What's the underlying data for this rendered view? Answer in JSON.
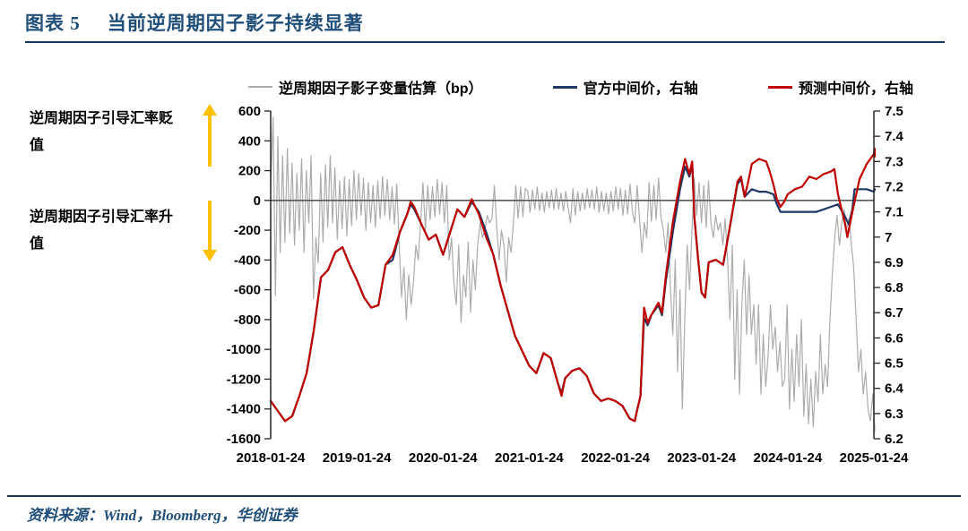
{
  "header": {
    "chart_label": "图表 5",
    "title": "当前逆周期因子影子持续显著"
  },
  "colors": {
    "title": "#1F4E79",
    "rule": "#17375E",
    "source": "#1F4E79",
    "axis": "#262626",
    "zero_line": "#595959",
    "arrow": "#FFC000",
    "shadow": "#ACACAC",
    "official": "#1F3864",
    "forecast": "#C00000"
  },
  "legend": [
    {
      "label": "逆周期因子影子变量估算（bp）",
      "color": "#ACACAC"
    },
    {
      "label": "官方中间价，右轴",
      "color": "#1F3864"
    },
    {
      "label": "预测中间价，右轴",
      "color": "#C00000"
    }
  ],
  "annotations": {
    "depreciation": {
      "line1": "逆周期因子引导汇率贬",
      "line2": "值",
      "arrow": "up"
    },
    "appreciation": {
      "line1": "逆周期因子引导汇率升",
      "line2": "值",
      "arrow": "down"
    }
  },
  "source": {
    "text": "资料来源：Wind，Bloomberg，华创证券"
  },
  "chart_data": {
    "type": "line",
    "title": "当前逆周期因子影子持续显著",
    "grid": false,
    "legend_position": "top",
    "x_axis": {
      "labels": [
        "2018-01-24",
        "2019-01-24",
        "2020-01-24",
        "2021-01-24",
        "2022-01-24",
        "2023-01-24",
        "2024-01-24",
        "2025-01-24"
      ],
      "positions_months": [
        0,
        12,
        24,
        36,
        48,
        60,
        72,
        84
      ],
      "months_total": 84
    },
    "left_axis": {
      "range": [
        -1600,
        600
      ],
      "ticks": [
        600,
        400,
        200,
        0,
        -200,
        -400,
        -600,
        -800,
        -1000,
        -1200,
        -1400,
        -1600
      ],
      "tick_labels": [
        "600",
        "400",
        "200",
        "0",
        "-200",
        "-400",
        "-600",
        "-800",
        "-1000",
        "-1200",
        "-1400",
        "-1600"
      ],
      "series_unit": "bp"
    },
    "right_axis": {
      "range": [
        6.2,
        7.5
      ],
      "ticks": [
        7.5,
        7.4,
        7.3,
        7.2,
        7.1,
        7.0,
        6.9,
        6.8,
        6.7,
        6.6,
        6.5,
        6.4,
        6.3,
        6.2
      ],
      "tick_labels": [
        "7.5",
        "7.4",
        "7.3",
        "7.2",
        "7.1",
        "7",
        "6.9",
        "6.8",
        "6.7",
        "6.6",
        "6.5",
        "6.4",
        "6.3",
        "6.2"
      ]
    },
    "zero_line": {
      "axis": "left",
      "value": 0
    },
    "series": [
      {
        "key": "shadow-bp",
        "name": "逆周期因子影子变量估算（bp）",
        "axis": "left",
        "color": "#ACACAC",
        "width": 1.2,
        "x_unit": "months_since_2018-01-24",
        "x_start": 0,
        "x_step": 0.3314,
        "values": [
          80,
          560,
          -640,
          430,
          -350,
          300,
          -280,
          350,
          -220,
          250,
          -300,
          180,
          -200,
          280,
          -350,
          200,
          -150,
          300,
          -660,
          -250,
          -420,
          180,
          -280,
          240,
          -180,
          300,
          -150,
          220,
          -260,
          130,
          -190,
          160,
          -240,
          140,
          -170,
          200,
          -130,
          180,
          -100,
          150,
          -200,
          120,
          -150,
          100,
          -180,
          130,
          -120,
          160,
          -100,
          140,
          -130,
          90,
          -160,
          110,
          -300,
          -650,
          -450,
          -800,
          -500,
          -700,
          -550,
          -300,
          -400,
          -150,
          120,
          -200,
          100,
          -130,
          90,
          -110,
          140,
          -90,
          120,
          -150,
          100,
          -400,
          -250,
          -550,
          -700,
          -300,
          -820,
          -500,
          -650,
          -280,
          -750,
          -400,
          -600,
          -300,
          -150,
          -250,
          -200,
          -100,
          -150,
          -120,
          100,
          -180,
          -400,
          -200,
          -300,
          -550,
          -250,
          -350,
          -150,
          100,
          -120,
          90,
          -110,
          80,
          60,
          -80,
          70,
          -60,
          90,
          -70,
          50,
          -80,
          60,
          -50,
          70,
          -60,
          80,
          -60,
          50,
          -70,
          60,
          -50,
          -150,
          80,
          -100,
          60,
          -70,
          50,
          -60,
          80,
          -50,
          70,
          -60,
          90,
          -80,
          60,
          -70,
          50,
          -90,
          60,
          -70,
          90,
          -60,
          80,
          -100,
          70,
          -90,
          110,
          -80,
          -150,
          100,
          -120,
          -350,
          -150,
          -250,
          120,
          -140,
          100,
          -130,
          150,
          -110,
          -200,
          -350,
          -150,
          -600,
          -900,
          -400,
          -1150,
          -600,
          -1400,
          -800,
          -300,
          -600,
          -200,
          150,
          -100,
          120,
          -150,
          100,
          -180,
          130,
          -150,
          -250,
          -100,
          -200,
          -150,
          -300,
          -120,
          -400,
          -800,
          -300,
          -1200,
          -600,
          -1300,
          -700,
          -400,
          -900,
          -500,
          -900,
          -700,
          -1100,
          -700,
          -1300,
          -900,
          -1250,
          -1050,
          -700,
          -1000,
          -850,
          -1150,
          -950,
          -1250,
          -1200,
          -700,
          -1400,
          -1000,
          -1350,
          -900,
          -1250,
          -800,
          -1450,
          -1100,
          -1500,
          -1200,
          -1520,
          -1150,
          -1350,
          -900,
          -1300,
          -1100,
          -1250,
          -800,
          -500,
          -250,
          -100,
          -300,
          -150,
          -60,
          -200,
          -120,
          -300,
          -450,
          -800,
          -1150,
          -1000,
          -1300,
          -1150,
          -1400,
          -1480,
          -1300,
          -1550,
          -1500
        ]
      },
      {
        "key": "official-parity",
        "name": "官方中间价，右轴",
        "axis": "right",
        "color": "#1F3864",
        "width": 2.2,
        "x_unit": "months_since_2018-01-24",
        "points": [
          [
            0,
            6.35
          ],
          [
            1,
            6.31
          ],
          [
            2,
            6.27
          ],
          [
            3,
            6.29
          ],
          [
            4,
            6.37
          ],
          [
            5,
            6.46
          ],
          [
            6,
            6.63
          ],
          [
            7,
            6.84
          ],
          [
            8,
            6.87
          ],
          [
            9,
            6.94
          ],
          [
            10,
            6.96
          ],
          [
            11,
            6.89
          ],
          [
            12,
            6.83
          ],
          [
            13,
            6.76
          ],
          [
            14,
            6.72
          ],
          [
            15,
            6.73
          ],
          [
            16,
            6.89
          ],
          [
            17,
            6.91
          ],
          [
            18,
            7.02
          ],
          [
            19,
            7.09
          ],
          [
            19.5,
            7.13
          ],
          [
            20,
            7.11
          ],
          [
            21,
            7.05
          ],
          [
            22,
            6.99
          ],
          [
            23,
            7.01
          ],
          [
            24,
            6.93
          ],
          [
            25,
            7.02
          ],
          [
            26,
            7.11
          ],
          [
            27,
            7.08
          ],
          [
            28,
            7.14
          ],
          [
            29,
            7.1
          ],
          [
            30,
            7.02
          ],
          [
            31,
            6.93
          ],
          [
            32,
            6.81
          ],
          [
            33,
            6.71
          ],
          [
            34,
            6.61
          ],
          [
            35,
            6.55
          ],
          [
            36,
            6.49
          ],
          [
            37,
            6.46
          ],
          [
            38,
            6.54
          ],
          [
            39,
            6.52
          ],
          [
            40,
            6.42
          ],
          [
            40.5,
            6.38
          ],
          [
            41,
            6.44
          ],
          [
            42,
            6.47
          ],
          [
            43,
            6.48
          ],
          [
            44,
            6.45
          ],
          [
            45,
            6.38
          ],
          [
            46,
            6.35
          ],
          [
            47,
            6.36
          ],
          [
            48,
            6.35
          ],
          [
            49,
            6.33
          ],
          [
            50,
            6.28
          ],
          [
            50.7,
            6.27
          ],
          [
            51,
            6.31
          ],
          [
            51.5,
            6.37
          ],
          [
            52,
            6.68
          ],
          [
            52.5,
            6.65
          ],
          [
            53,
            6.69
          ],
          [
            54,
            6.73
          ],
          [
            54.5,
            6.69
          ],
          [
            55,
            6.82
          ],
          [
            56,
            7.02
          ],
          [
            57,
            7.19
          ],
          [
            57.7,
            7.28
          ],
          [
            58.3,
            7.24
          ],
          [
            58.7,
            7.29
          ],
          [
            59,
            7.08
          ],
          [
            59.5,
            6.92
          ],
          [
            60,
            6.78
          ],
          [
            60.5,
            6.76
          ],
          [
            61,
            6.9
          ],
          [
            62,
            6.91
          ],
          [
            63,
            6.89
          ],
          [
            64,
            7.05
          ],
          [
            65,
            7.21
          ],
          [
            65.5,
            7.23
          ],
          [
            66,
            7.16
          ],
          [
            67,
            7.19
          ],
          [
            68,
            7.18
          ],
          [
            69,
            7.18
          ],
          [
            70,
            7.17
          ],
          [
            70.5,
            7.13
          ],
          [
            71,
            7.1
          ],
          [
            72,
            7.1
          ],
          [
            73,
            7.1
          ],
          [
            74,
            7.1
          ],
          [
            75,
            7.1
          ],
          [
            76,
            7.1
          ],
          [
            77,
            7.11
          ],
          [
            78,
            7.12
          ],
          [
            79,
            7.13
          ],
          [
            80,
            7.08
          ],
          [
            80.5,
            7.05
          ],
          [
            81,
            7.11
          ],
          [
            81.3,
            7.19
          ],
          [
            82,
            7.19
          ],
          [
            83,
            7.19
          ],
          [
            84,
            7.18
          ],
          [
            84.6,
            7.19
          ]
        ]
      },
      {
        "key": "forecast-parity",
        "name": "预测中间价，右轴",
        "axis": "right",
        "color": "#C00000",
        "width": 2.2,
        "x_unit": "months_since_2018-01-24",
        "points": [
          [
            0,
            6.35
          ],
          [
            1,
            6.31
          ],
          [
            2,
            6.27
          ],
          [
            3,
            6.29
          ],
          [
            4,
            6.37
          ],
          [
            5,
            6.46
          ],
          [
            6,
            6.63
          ],
          [
            7,
            6.84
          ],
          [
            8,
            6.87
          ],
          [
            9,
            6.94
          ],
          [
            10,
            6.96
          ],
          [
            11,
            6.89
          ],
          [
            12,
            6.83
          ],
          [
            13,
            6.76
          ],
          [
            14,
            6.72
          ],
          [
            15,
            6.73
          ],
          [
            16,
            6.89
          ],
          [
            17,
            6.93
          ],
          [
            18,
            7.02
          ],
          [
            19,
            7.09
          ],
          [
            19.5,
            7.14
          ],
          [
            20,
            7.12
          ],
          [
            21,
            7.05
          ],
          [
            22,
            6.99
          ],
          [
            23,
            7.01
          ],
          [
            24,
            6.93
          ],
          [
            25,
            7.02
          ],
          [
            26,
            7.11
          ],
          [
            27,
            7.08
          ],
          [
            28,
            7.15
          ],
          [
            29,
            7.09
          ],
          [
            30,
            7.0
          ],
          [
            31,
            6.93
          ],
          [
            32,
            6.81
          ],
          [
            33,
            6.71
          ],
          [
            34,
            6.61
          ],
          [
            35,
            6.55
          ],
          [
            36,
            6.49
          ],
          [
            37,
            6.46
          ],
          [
            38,
            6.54
          ],
          [
            39,
            6.52
          ],
          [
            40,
            6.42
          ],
          [
            40.5,
            6.37
          ],
          [
            41,
            6.44
          ],
          [
            42,
            6.47
          ],
          [
            43,
            6.48
          ],
          [
            44,
            6.45
          ],
          [
            45,
            6.38
          ],
          [
            46,
            6.35
          ],
          [
            47,
            6.36
          ],
          [
            48,
            6.35
          ],
          [
            49,
            6.33
          ],
          [
            50,
            6.28
          ],
          [
            50.7,
            6.27
          ],
          [
            51,
            6.31
          ],
          [
            51.5,
            6.37
          ],
          [
            52,
            6.72
          ],
          [
            52.5,
            6.66
          ],
          [
            53,
            6.69
          ],
          [
            54,
            6.74
          ],
          [
            54.5,
            6.7
          ],
          [
            55,
            6.84
          ],
          [
            56,
            7.06
          ],
          [
            57,
            7.22
          ],
          [
            57.7,
            7.31
          ],
          [
            58.3,
            7.25
          ],
          [
            58.7,
            7.3
          ],
          [
            59,
            7.08
          ],
          [
            59.5,
            6.92
          ],
          [
            60,
            6.78
          ],
          [
            60.5,
            6.76
          ],
          [
            61,
            6.9
          ],
          [
            62,
            6.91
          ],
          [
            63,
            6.89
          ],
          [
            64,
            7.05
          ],
          [
            65,
            7.22
          ],
          [
            65.5,
            7.24
          ],
          [
            66,
            7.16
          ],
          [
            66.5,
            7.22
          ],
          [
            67,
            7.29
          ],
          [
            68,
            7.31
          ],
          [
            69,
            7.3
          ],
          [
            69.5,
            7.26
          ],
          [
            70,
            7.21
          ],
          [
            70.5,
            7.15
          ],
          [
            71,
            7.12
          ],
          [
            71.5,
            7.14
          ],
          [
            72,
            7.17
          ],
          [
            73,
            7.19
          ],
          [
            74,
            7.2
          ],
          [
            75,
            7.24
          ],
          [
            76,
            7.23
          ],
          [
            77,
            7.25
          ],
          [
            78,
            7.26
          ],
          [
            78.5,
            7.27
          ],
          [
            79,
            7.17
          ],
          [
            80,
            7.05
          ],
          [
            80.3,
            7.0
          ],
          [
            81,
            7.1
          ],
          [
            82,
            7.23
          ],
          [
            83,
            7.29
          ],
          [
            84,
            7.33
          ],
          [
            84.3,
            7.35
          ],
          [
            84.6,
            7.32
          ]
        ]
      }
    ]
  }
}
